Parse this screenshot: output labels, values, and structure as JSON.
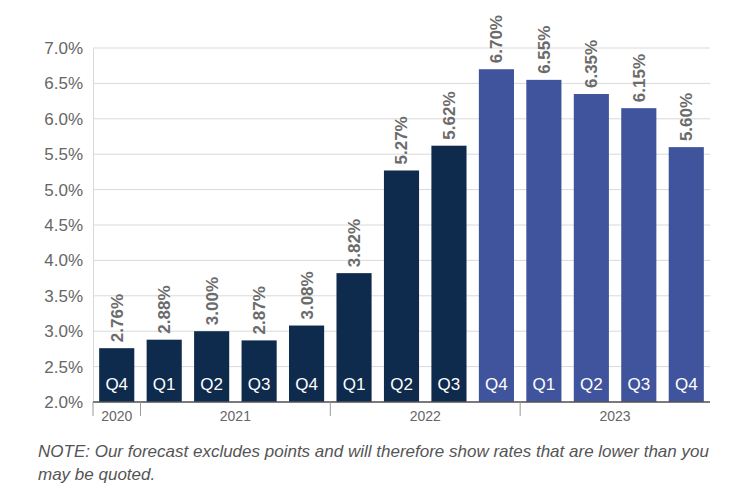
{
  "chart_data": {
    "type": "bar",
    "categories": [
      "Q4",
      "Q1",
      "Q2",
      "Q3",
      "Q4",
      "Q1",
      "Q2",
      "Q3",
      "Q4",
      "Q1",
      "Q2",
      "Q3",
      "Q4"
    ],
    "values": [
      2.76,
      2.88,
      3.0,
      2.87,
      3.08,
      3.82,
      5.27,
      5.62,
      6.7,
      6.55,
      6.35,
      6.15,
      5.6
    ],
    "value_labels": [
      "2.76%",
      "2.88%",
      "3.00%",
      "2.87%",
      "3.08%",
      "3.82%",
      "5.27%",
      "5.62%",
      "6.70%",
      "6.55%",
      "6.35%",
      "6.15%",
      "5.60%"
    ],
    "colors": [
      "#0e2a4c",
      "#0e2a4c",
      "#0e2a4c",
      "#0e2a4c",
      "#0e2a4c",
      "#0e2a4c",
      "#0e2a4c",
      "#0e2a4c",
      "#3f549c",
      "#3f549c",
      "#3f549c",
      "#3f549c",
      "#3f549c"
    ],
    "groups": [
      {
        "label": "2020",
        "count": 1
      },
      {
        "label": "2021",
        "count": 4
      },
      {
        "label": "2022",
        "count": 4
      },
      {
        "label": "2023",
        "count": 4
      }
    ],
    "ylim": [
      2.0,
      7.0
    ],
    "yticks": [
      {
        "value": 2.0,
        "label": "2.0%"
      },
      {
        "value": 2.5,
        "label": "2.5%"
      },
      {
        "value": 3.0,
        "label": "3.0%"
      },
      {
        "value": 3.5,
        "label": "3.5%"
      },
      {
        "value": 4.0,
        "label": "4.0%"
      },
      {
        "value": 4.5,
        "label": "4.5%"
      },
      {
        "value": 5.0,
        "label": "5.0%"
      },
      {
        "value": 5.5,
        "label": "5.5%"
      },
      {
        "value": 6.0,
        "label": "6.0%"
      },
      {
        "value": 6.5,
        "label": "6.5%"
      },
      {
        "value": 7.0,
        "label": "7.0%"
      }
    ],
    "grid": true,
    "data_labels": true,
    "note": "NOTE: Our forecast excludes points and will therefore show rates that are lower than you may be quoted."
  }
}
